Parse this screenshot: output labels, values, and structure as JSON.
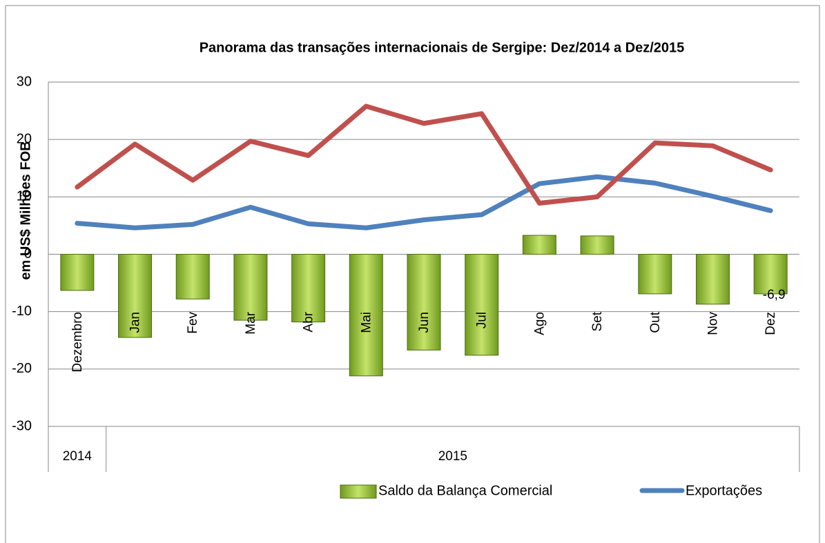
{
  "chart_data": {
    "type": "combo",
    "title": "Panorama das transações internacionais de Sergipe: Dez/2014 a Dez/2015",
    "y_label": "em US$ Milhões FOB",
    "categories": [
      "Dezembro",
      "Jan",
      "Fev",
      "Mar",
      "Abr",
      "Mai",
      "Jun",
      "Jul",
      "Ago",
      "Set",
      "Out",
      "Nov",
      "Dez"
    ],
    "groups": [
      {
        "label": "2014",
        "span": 1
      },
      {
        "label": "2015",
        "span": 12
      }
    ],
    "ylim": [
      -30,
      30
    ],
    "yticks": [
      -30,
      -20,
      -10,
      0,
      10,
      20,
      30
    ],
    "grid": true,
    "legend": "bottom",
    "series": [
      {
        "name": "Saldo da Balança Comercial",
        "type": "bar",
        "color": "#8db832",
        "values": [
          -6.3,
          -14.5,
          -7.8,
          -11.5,
          -11.8,
          -21.2,
          -16.7,
          -17.6,
          3.3,
          3.2,
          -6.9,
          -8.7,
          -6.9
        ],
        "value_labels": [
          null,
          null,
          null,
          null,
          null,
          null,
          null,
          null,
          null,
          null,
          null,
          null,
          "-6,9"
        ]
      },
      {
        "name": "Exportações",
        "type": "line",
        "color": "#4f81bd",
        "values": [
          5.4,
          4.6,
          5.2,
          8.2,
          5.3,
          4.6,
          6.0,
          6.9,
          12.3,
          13.5,
          12.4,
          10.1,
          7.6
        ]
      },
      {
        "type": "line",
        "color": "#c0504d",
        "values": [
          11.7,
          19.2,
          12.9,
          19.7,
          17.2,
          25.8,
          22.8,
          24.5,
          8.9,
          10.0,
          19.4,
          18.9,
          14.7
        ]
      }
    ]
  }
}
